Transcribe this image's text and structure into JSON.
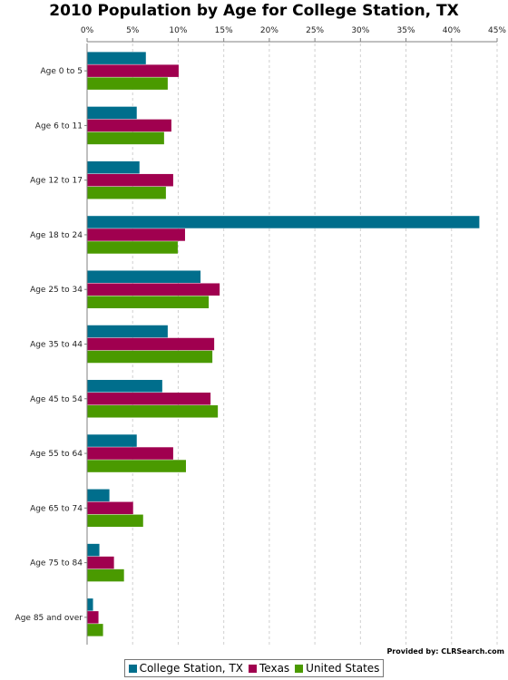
{
  "chart_data": {
    "type": "bar",
    "orientation": "horizontal",
    "title": "2010 Population by Age for College Station, TX",
    "xlabel": "",
    "ylabel": "",
    "xlim": [
      0,
      45
    ],
    "x_ticks": [
      "0%",
      "5%",
      "10%",
      "15%",
      "20%",
      "25%",
      "30%",
      "35%",
      "40%",
      "45%"
    ],
    "x_axis_position": "top",
    "grid": true,
    "legend_position": "bottom",
    "categories": [
      "Age 0 to 5",
      "Age 6 to 11",
      "Age 12 to 17",
      "Age 18 to 24",
      "Age 25 to 34",
      "Age 35 to 44",
      "Age 45 to 54",
      "Age 55 to 64",
      "Age 65 to 74",
      "Age 75 to 84",
      "Age 85 and over"
    ],
    "series": [
      {
        "name": "College Station, TX",
        "color": "#006e8c",
        "values": [
          6.4,
          5.4,
          5.7,
          43.0,
          12.4,
          8.8,
          8.2,
          5.4,
          2.4,
          1.3,
          0.6
        ]
      },
      {
        "name": "Texas",
        "color": "#a0004f",
        "values": [
          10.0,
          9.2,
          9.4,
          10.7,
          14.5,
          13.9,
          13.5,
          9.4,
          5.0,
          2.9,
          1.2
        ]
      },
      {
        "name": "United States",
        "color": "#4a9a00",
        "values": [
          8.8,
          8.4,
          8.6,
          9.9,
          13.3,
          13.7,
          14.3,
          10.8,
          6.1,
          4.0,
          1.7
        ]
      }
    ]
  },
  "footer": {
    "credit": "Provided by: CLRSearch.com"
  }
}
